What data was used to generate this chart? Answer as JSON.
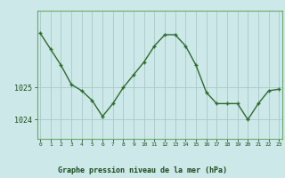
{
  "x": [
    0,
    1,
    2,
    3,
    4,
    5,
    6,
    7,
    8,
    9,
    10,
    11,
    12,
    13,
    14,
    15,
    16,
    17,
    18,
    19,
    20,
    21,
    22,
    23
  ],
  "y": [
    1026.7,
    1026.2,
    1025.7,
    1025.1,
    1024.9,
    1024.6,
    1024.1,
    1024.5,
    1025.0,
    1025.4,
    1025.8,
    1026.3,
    1026.65,
    1026.65,
    1026.3,
    1025.7,
    1024.85,
    1024.5,
    1024.5,
    1024.5,
    1024.0,
    1024.5,
    1024.9,
    1024.95
  ],
  "line_color": "#2d6b2d",
  "marker_color": "#2d6b2d",
  "bg_color": "#cce8e8",
  "grid_color": "#aac8c8",
  "border_color": "#6aaa6a",
  "title": "Graphe pression niveau de la mer (hPa)",
  "yticks": [
    1024,
    1025
  ],
  "ylim": [
    1023.4,
    1027.4
  ],
  "xlim": [
    -0.3,
    23.3
  ]
}
